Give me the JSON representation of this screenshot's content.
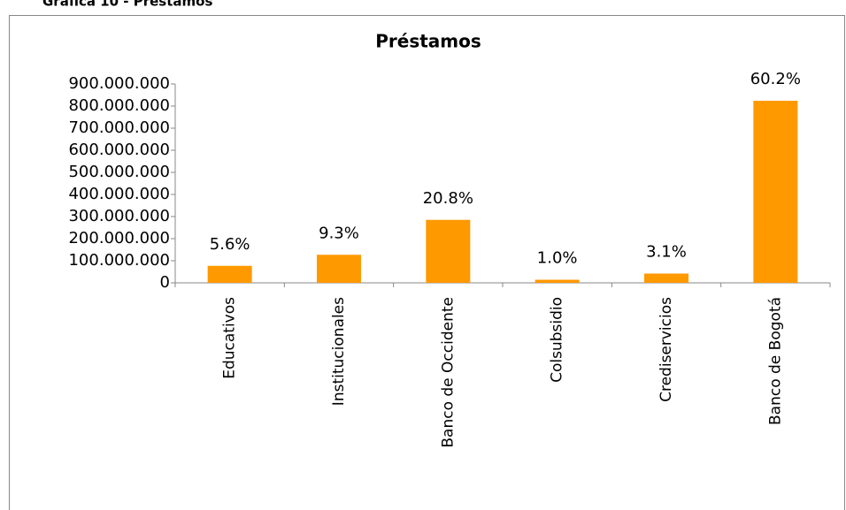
{
  "caption": "Gráfica 10 - Préstamos",
  "chart_data": {
    "type": "bar",
    "title": "Préstamos",
    "categories": [
      "Educativos",
      "Institucionales",
      "Banco de Occidente",
      "Colsubsidio",
      "Crediservicios",
      "Banco de Bogotá"
    ],
    "values": [
      77000000,
      127000000,
      285000000,
      14000000,
      42000000,
      824000000
    ],
    "share_labels": [
      "5.6%",
      "9.3%",
      "20.8%",
      "1.0%",
      "3.1%",
      "60.2%"
    ],
    "color": "#ff9900",
    "ylim": [
      0,
      900000000
    ],
    "yticks": [
      0,
      {
        "value": 100000000,
        "label": "100.000.000"
      },
      {
        "value": 200000000,
        "label": "200.000.000"
      },
      {
        "value": 300000000,
        "label": "300.000.000"
      },
      {
        "value": 400000000,
        "label": "400.000.000"
      },
      {
        "value": 500000000,
        "label": "500.000.000"
      },
      {
        "value": 600000000,
        "label": "600.000.000"
      },
      {
        "value": 700000000,
        "label": "700.000.000"
      },
      {
        "value": 800000000,
        "label": "800.000.000"
      },
      {
        "value": 900000000,
        "label": "900.000.000"
      }
    ],
    "grid": false
  }
}
